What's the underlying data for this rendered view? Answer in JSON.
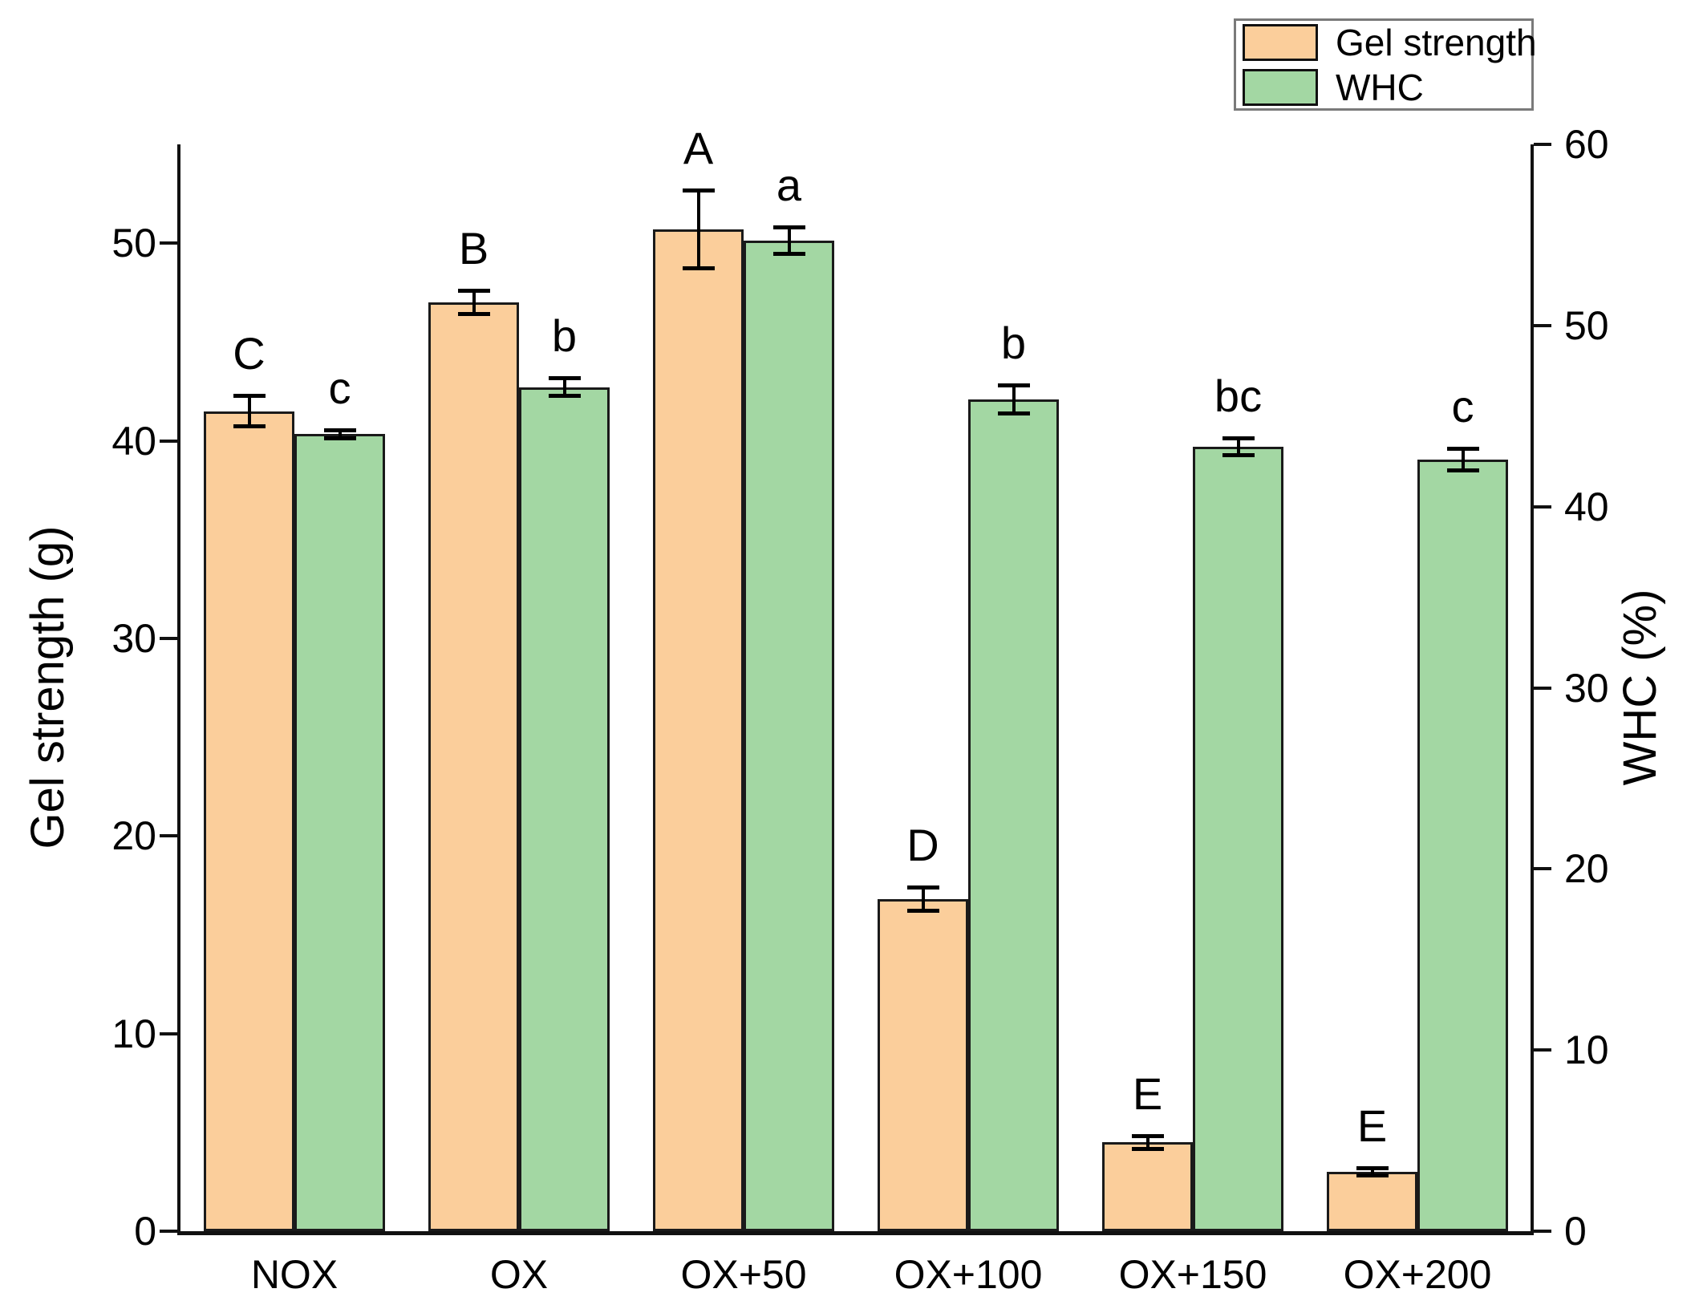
{
  "chart_data": {
    "type": "bar",
    "categories": [
      "NOX",
      "OX",
      "OX+50",
      "OX+100",
      "OX+150",
      "OX+200"
    ],
    "series": [
      {
        "name": "Gel strength",
        "axis": "left",
        "color": "#FBCE9B",
        "values": [
          41.5,
          47.0,
          50.7,
          16.8,
          4.5,
          3.0
        ],
        "errors": [
          0.8,
          0.6,
          2.0,
          0.6,
          0.35,
          0.2
        ],
        "sig_labels": [
          "C",
          "B",
          "A",
          "D",
          "E",
          "E"
        ]
      },
      {
        "name": "WHC",
        "axis": "right",
        "color": "#A3D7A3",
        "values": [
          44.0,
          46.6,
          54.7,
          45.9,
          43.3,
          42.6
        ],
        "errors": [
          0.25,
          0.5,
          0.75,
          0.8,
          0.5,
          0.6
        ],
        "sig_labels": [
          "c",
          "b",
          "a",
          "b",
          "bc",
          "c"
        ]
      }
    ],
    "left_axis": {
      "label": "Gel strength (g)",
      "ticks": [
        0,
        10,
        20,
        30,
        40,
        50
      ],
      "range": [
        0,
        55
      ]
    },
    "right_axis": {
      "label": "WHC (%)",
      "ticks": [
        0,
        10,
        20,
        30,
        40,
        50,
        60
      ],
      "range": [
        0,
        60
      ]
    },
    "legend_position": "top-right",
    "grid": false,
    "error_bars": true
  }
}
